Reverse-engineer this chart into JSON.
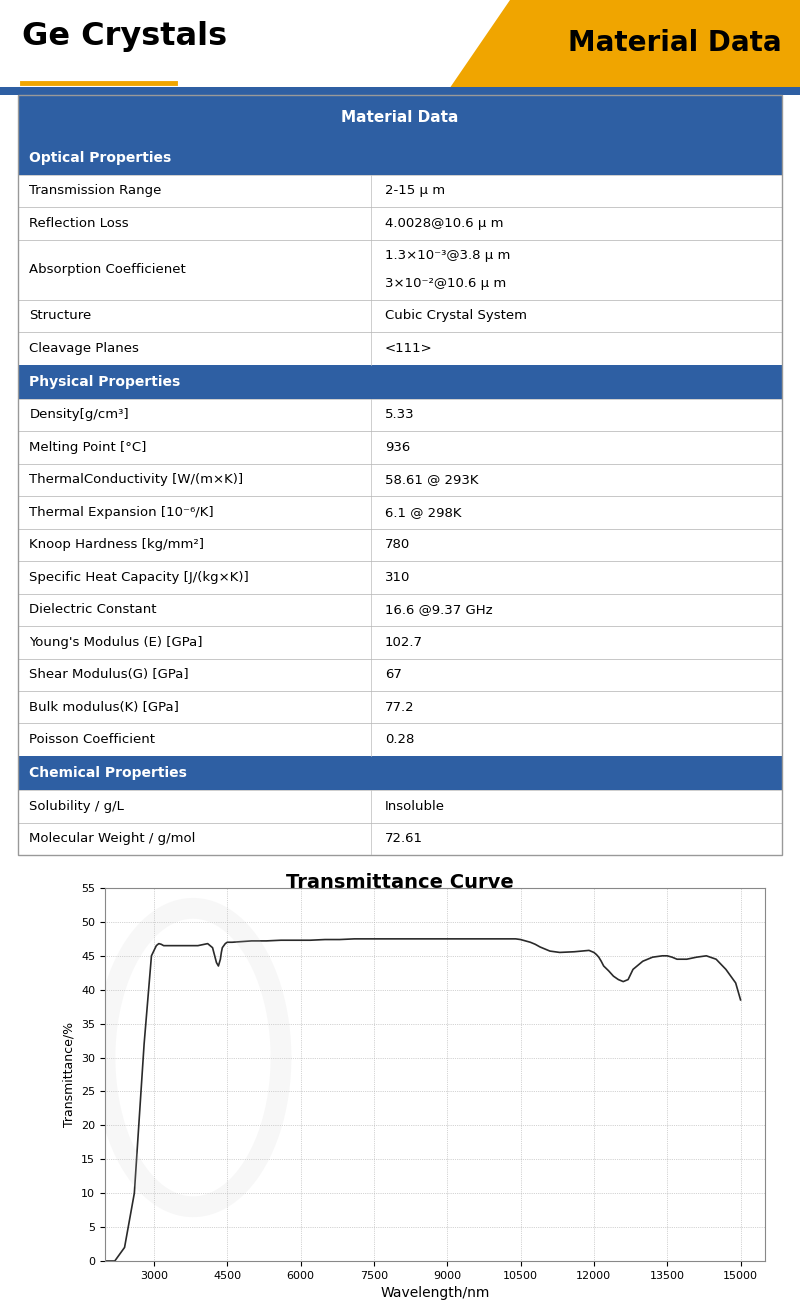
{
  "title_left": "Ge Crystals",
  "title_right": "Material Data",
  "header_color": "#2E5FA3",
  "orange_color": "#F0A500",
  "table_header": "Material Data",
  "sections": [
    {
      "name": "Optical Properties",
      "rows": [
        [
          "Transmission Range",
          "2-15 μ m"
        ],
        [
          "Reflection Loss",
          "4.0028@10.6 μ m"
        ],
        [
          "Absorption Coefficienet",
          "1.3×10⁻³@3.8 μ m\n3×10⁻²@10.6 μ m"
        ],
        [
          "Structure",
          "Cubic Crystal System"
        ],
        [
          "Cleavage Planes",
          "<111>"
        ]
      ]
    },
    {
      "name": "Physical Properties",
      "rows": [
        [
          "Density[g/cm³]",
          "5.33"
        ],
        [
          "Melting Point [°C]",
          "936"
        ],
        [
          "ThermalConductivity [W/(m×K)]",
          "58.61 @ 293K"
        ],
        [
          "Thermal Expansion [10⁻⁶/K]",
          "6.1 @ 298K"
        ],
        [
          "Knoop Hardness [kg/mm²]",
          "780"
        ],
        [
          "Specific Heat Capacity [J/(kg×K)]",
          "310"
        ],
        [
          "Dielectric Constant",
          "16.6 @9.37 GHz"
        ],
        [
          "Young's Modulus (E) [GPa]",
          "102.7"
        ],
        [
          "Shear Modulus(G) [GPa]",
          "67"
        ],
        [
          "Bulk modulus(K) [GPa]",
          "77.2"
        ],
        [
          "Poisson Coefficient",
          "0.28"
        ]
      ]
    },
    {
      "name": "Chemical Properties",
      "rows": [
        [
          "Solubility / g/L",
          "Insoluble"
        ],
        [
          "Molecular Weight / g/mol",
          "72.61"
        ]
      ]
    }
  ],
  "chart_title": "Transmittance Curve",
  "xlabel": "Wavelength/nm",
  "ylabel": "Transmittance/%",
  "xmin": 2000,
  "xmax": 15500,
  "ymin": 0,
  "ymax": 55,
  "xticks": [
    3000,
    4500,
    6000,
    7500,
    9000,
    10500,
    12000,
    13500,
    15000
  ],
  "yticks": [
    0,
    5,
    10,
    15,
    20,
    25,
    30,
    35,
    40,
    45,
    50,
    55
  ],
  "wavelength": [
    2000,
    2200,
    2400,
    2600,
    2800,
    2950,
    3050,
    3100,
    3150,
    3200,
    3300,
    3500,
    3700,
    3900,
    4100,
    4200,
    4280,
    4320,
    4360,
    4380,
    4400,
    4430,
    4460,
    4500,
    4600,
    4800,
    5000,
    5300,
    5600,
    5900,
    6200,
    6500,
    6800,
    7100,
    7400,
    7700,
    8000,
    8300,
    8600,
    8900,
    9200,
    9500,
    9800,
    10100,
    10400,
    10500,
    10600,
    10700,
    10800,
    10900,
    11000,
    11100,
    11300,
    11600,
    11900,
    12000,
    12050,
    12100,
    12150,
    12200,
    12300,
    12400,
    12500,
    12600,
    12700,
    12800,
    13000,
    13200,
    13400,
    13500,
    13600,
    13700,
    13900,
    14100,
    14300,
    14500,
    14700,
    14900,
    15000
  ],
  "transmittance": [
    0,
    0,
    2,
    10,
    32,
    45,
    46.5,
    46.8,
    46.7,
    46.5,
    46.5,
    46.5,
    46.5,
    46.5,
    46.8,
    46.2,
    44.0,
    43.5,
    44.5,
    45.5,
    46.2,
    46.5,
    46.8,
    47.0,
    47.0,
    47.1,
    47.2,
    47.2,
    47.3,
    47.3,
    47.3,
    47.4,
    47.4,
    47.5,
    47.5,
    47.5,
    47.5,
    47.5,
    47.5,
    47.5,
    47.5,
    47.5,
    47.5,
    47.5,
    47.5,
    47.4,
    47.2,
    47.0,
    46.7,
    46.3,
    46.0,
    45.7,
    45.5,
    45.6,
    45.8,
    45.5,
    45.2,
    44.8,
    44.2,
    43.5,
    42.8,
    42.0,
    41.5,
    41.2,
    41.5,
    43.0,
    44.2,
    44.8,
    45.0,
    45.0,
    44.8,
    44.5,
    44.5,
    44.8,
    45.0,
    44.5,
    43.0,
    41.0,
    38.5
  ]
}
